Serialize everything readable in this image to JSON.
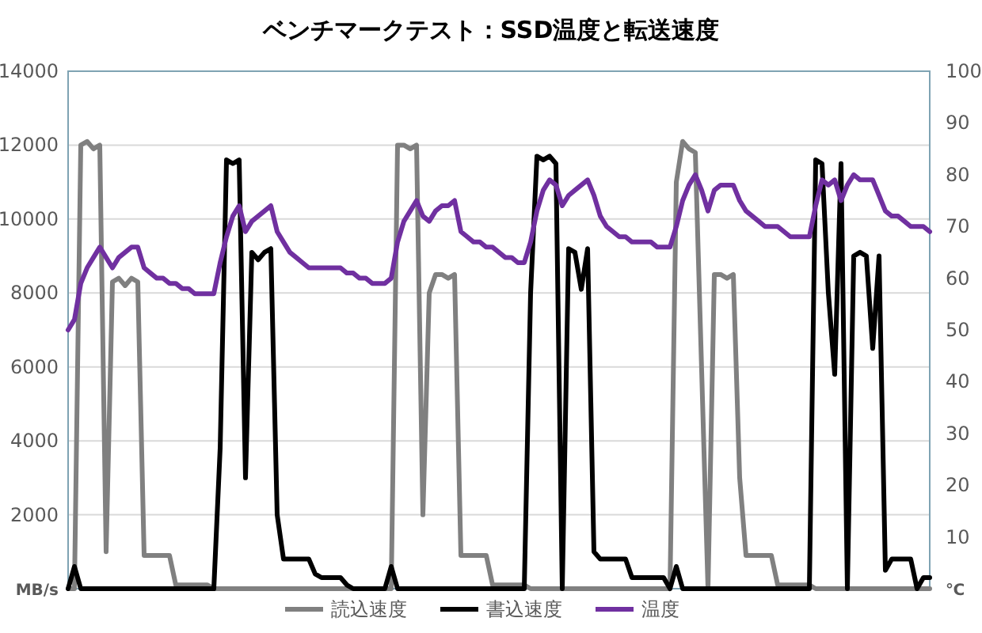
{
  "chart_data": {
    "type": "line",
    "title": "ベンチマークテスト：SSD温度と転送速度",
    "ylabel": "MB/s",
    "y2label": "℃",
    "categories": [
      null,
      null,
      null,
      null,
      null,
      null,
      null,
      null,
      null,
      null,
      null,
      null,
      null,
      null,
      null,
      null,
      null,
      null,
      null,
      null,
      null,
      null,
      null,
      null,
      null,
      null,
      null,
      null,
      null,
      null,
      null,
      null,
      null,
      null,
      null,
      null,
      null,
      null,
      null,
      null,
      null,
      null,
      null,
      null,
      null,
      null,
      null,
      null,
      null,
      null,
      null,
      null,
      null,
      null,
      null,
      null,
      null,
      null,
      null,
      null,
      null,
      null,
      null,
      null,
      null,
      null,
      null,
      null,
      null,
      null,
      null,
      null,
      null,
      null,
      null,
      null,
      null,
      null,
      null,
      null,
      null,
      null,
      null,
      null,
      null,
      null,
      null,
      null,
      null,
      null,
      null,
      null,
      null,
      null,
      null,
      null,
      null,
      null,
      null,
      null,
      null,
      null,
      null,
      null,
      null,
      null,
      null,
      null,
      null,
      null,
      null,
      null,
      null,
      null,
      null,
      null,
      null,
      null,
      null,
      null,
      null,
      null,
      null,
      null,
      null,
      null,
      null,
      null,
      null,
      null,
      null,
      null,
      null,
      null,
      null,
      null,
      null
    ],
    "series": [
      {
        "name": "読込速度",
        "color": "#808080",
        "values": [
          0,
          0,
          12000,
          12100,
          11900,
          12000,
          1000,
          8300,
          8400,
          8200,
          8400,
          8300,
          900,
          900,
          900,
          900,
          900,
          100,
          100,
          100,
          100,
          100,
          100,
          0,
          0,
          0,
          0,
          0,
          0,
          0,
          0,
          0,
          0,
          0,
          0,
          0,
          0,
          0,
          0,
          0,
          0,
          0,
          0,
          0,
          0,
          0,
          0,
          0,
          0,
          0,
          0,
          0,
          12000,
          12000,
          11900,
          12000,
          2000,
          8000,
          8500,
          8500,
          8400,
          8500,
          900,
          900,
          900,
          900,
          900,
          100,
          100,
          100,
          100,
          100,
          100,
          0,
          0,
          0,
          0,
          0,
          0,
          0,
          0,
          0,
          0,
          0,
          0,
          0,
          0,
          0,
          0,
          0,
          0,
          0,
          0,
          0,
          0,
          0,
          11000,
          12100,
          11900,
          11800,
          5900,
          0,
          8500,
          8500,
          8400,
          8500,
          3000,
          900,
          900,
          900,
          900,
          900,
          100,
          100,
          100,
          100,
          100,
          100,
          0,
          0,
          0,
          0,
          0,
          0,
          0,
          0,
          0,
          0,
          0,
          0,
          0,
          0,
          0,
          0,
          0,
          0,
          0
        ]
      },
      {
        "name": "書込速度",
        "color": "#000000",
        "values": [
          0,
          600,
          0,
          0,
          0,
          0,
          0,
          0,
          0,
          0,
          0,
          0,
          0,
          0,
          0,
          0,
          0,
          0,
          0,
          0,
          0,
          0,
          0,
          0,
          3800,
          11600,
          11500,
          11600,
          3000,
          9100,
          8900,
          9100,
          9200,
          2000,
          800,
          800,
          800,
          800,
          800,
          400,
          300,
          300,
          300,
          300,
          100,
          0,
          0,
          0,
          0,
          0,
          0,
          600,
          0,
          0,
          0,
          0,
          0,
          0,
          0,
          0,
          0,
          0,
          0,
          0,
          0,
          0,
          0,
          0,
          0,
          0,
          0,
          0,
          0,
          8000,
          11700,
          11600,
          11700,
          11500,
          0,
          9200,
          9100,
          8100,
          9200,
          1000,
          800,
          800,
          800,
          800,
          800,
          300,
          300,
          300,
          300,
          300,
          300,
          0,
          600,
          0,
          0,
          0,
          0,
          0,
          0,
          0,
          0,
          0,
          0,
          0,
          0,
          0,
          0,
          0,
          0,
          0,
          0,
          0,
          0,
          0,
          11600,
          11500,
          8000,
          5800,
          11500,
          0,
          9000,
          9100,
          9000,
          6500,
          9000,
          500,
          800,
          800,
          800,
          800,
          0,
          300,
          300
        ]
      },
      {
        "name": "温度",
        "color": "#7030a0",
        "axis": "y2",
        "values": [
          50,
          52,
          59,
          62,
          64,
          66,
          64,
          62,
          64,
          65,
          66,
          66,
          62,
          61,
          60,
          60,
          59,
          59,
          58,
          58,
          57,
          57,
          57,
          57,
          63,
          68,
          72,
          74,
          69,
          71,
          72,
          73,
          74,
          69,
          67,
          65,
          64,
          63,
          62,
          62,
          62,
          62,
          62,
          62,
          61,
          61,
          60,
          60,
          59,
          59,
          59,
          60,
          67,
          71,
          73,
          75,
          72,
          71,
          73,
          74,
          74,
          75,
          69,
          68,
          67,
          67,
          66,
          66,
          65,
          64,
          64,
          63,
          63,
          67,
          73,
          77,
          79,
          78,
          74,
          76,
          77,
          78,
          79,
          76,
          72,
          70,
          69,
          68,
          68,
          67,
          67,
          67,
          67,
          66,
          66,
          66,
          70,
          75,
          78,
          80,
          77,
          73,
          77,
          78,
          78,
          78,
          75,
          73,
          72,
          71,
          70,
          70,
          70,
          69,
          68,
          68,
          68,
          68,
          74,
          79,
          78,
          79,
          75,
          78,
          80,
          79,
          79,
          79,
          76,
          73,
          72,
          72,
          71,
          70,
          70,
          70,
          69
        ]
      }
    ],
    "ylim": [
      0,
      14000
    ],
    "yticks": [
      2000,
      4000,
      6000,
      8000,
      10000,
      12000,
      14000
    ],
    "y2lim": [
      0,
      100
    ],
    "y2ticks": [
      10,
      20,
      30,
      40,
      50,
      60,
      70,
      80,
      90,
      100
    ],
    "grid": "y",
    "legend": "bottom"
  }
}
